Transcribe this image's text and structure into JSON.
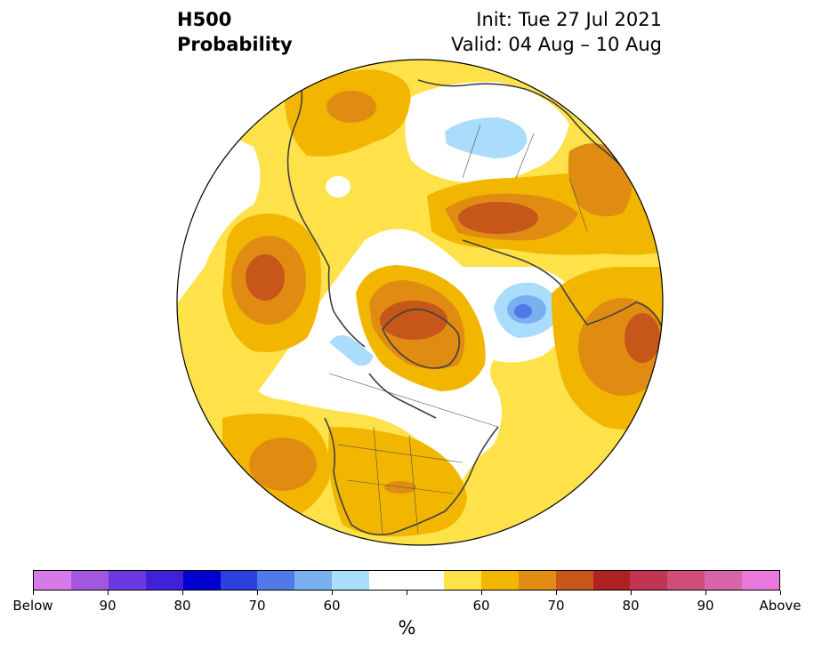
{
  "title": {
    "line1": "H500",
    "line2": "Probability"
  },
  "dates": {
    "init": "Init: Tue 27 Jul 2021",
    "valid": "Valid: 04 Aug – 10 Aug"
  },
  "colorbar": {
    "unit": "%",
    "tick_labels": [
      "Below",
      "90",
      "80",
      "70",
      "60",
      "60",
      "70",
      "80",
      "90",
      "Above"
    ],
    "colors": [
      "#d67ae8",
      "#a357e0",
      "#6a3ae0",
      "#4020d8",
      "#0000d0",
      "#2b40dc",
      "#4f7ae8",
      "#78b0f0",
      "#aadcfc",
      "#ffffff",
      "#ffe14a",
      "#f2b600",
      "#e08c12",
      "#c6561a",
      "#b02222",
      "#c23550",
      "#d04f7a",
      "#d865a8",
      "#e878dc"
    ]
  },
  "map_colors": {
    "below_light": "#aadcfc",
    "below_mid": "#78b0f0",
    "below_dark": "#4f7ae8",
    "above_60": "#ffe14a",
    "above_65": "#f2b600",
    "above_70": "#e08c12",
    "above_75": "#c6561a",
    "coastline": "#404040"
  }
}
